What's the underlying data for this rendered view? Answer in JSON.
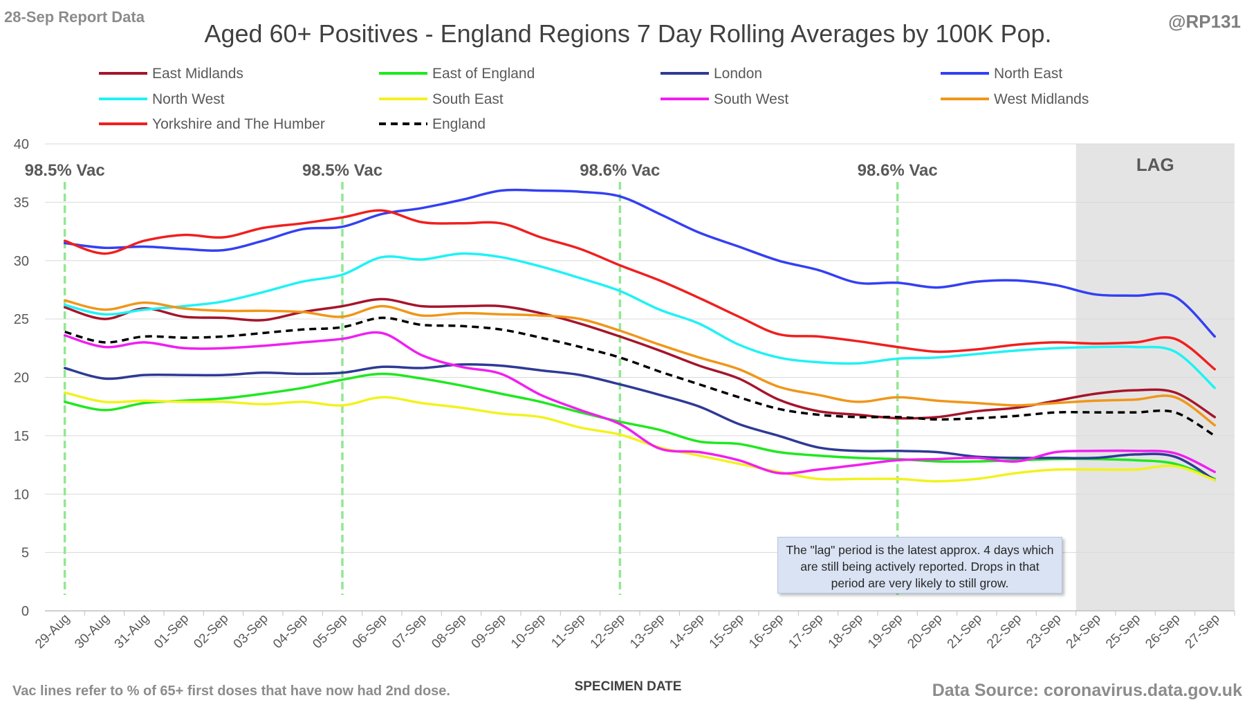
{
  "header": {
    "report_label": "28-Sep Report Data",
    "title": "Aged 60+ Positives - England Regions 7 Day Rolling Averages by 100K Pop.",
    "handle": "@RP131"
  },
  "footer": {
    "footnote": "Vac lines refer to % of 65+ first doses that have now had 2nd dose.",
    "source": "Data Source: coronavirus.data.gov.uk"
  },
  "note": "The \"lag\" period is the latest approx. 4 days which are still being actively reported. Drops in that period are very likely to still grow.",
  "chart_data": {
    "type": "line",
    "title": "Aged 60+ Positives - England Regions 7 Day Rolling Averages by 100K Pop.",
    "xlabel": "SPECIMEN DATE",
    "ylabel": "",
    "ylim": [
      0,
      40
    ],
    "yticks": [
      0,
      5,
      10,
      15,
      20,
      25,
      30,
      35,
      40
    ],
    "grid": "horizontal",
    "legend_position": "top",
    "x": [
      "29-Aug",
      "30-Aug",
      "31-Aug",
      "01-Sep",
      "02-Sep",
      "03-Sep",
      "04-Sep",
      "05-Sep",
      "06-Sep",
      "07-Sep",
      "08-Sep",
      "09-Sep",
      "10-Sep",
      "11-Sep",
      "12-Sep",
      "13-Sep",
      "14-Sep",
      "15-Sep",
      "16-Sep",
      "17-Sep",
      "18-Sep",
      "19-Sep",
      "20-Sep",
      "21-Sep",
      "22-Sep",
      "23-Sep",
      "24-Sep",
      "25-Sep",
      "26-Sep",
      "27-Sep"
    ],
    "lag": {
      "label": "LAG",
      "from": "24-Sep",
      "to": "27-Sep"
    },
    "vac_lines": [
      {
        "date": "29-Aug",
        "label": "98.5% Vac"
      },
      {
        "date": "05-Sep",
        "label": "98.5% Vac"
      },
      {
        "date": "12-Sep",
        "label": "98.6% Vac"
      },
      {
        "date": "19-Sep",
        "label": "98.6% Vac"
      }
    ],
    "series": [
      {
        "name": "East Midlands",
        "color": "#a5152b",
        "dashed": false,
        "values": [
          26.0,
          25.0,
          25.9,
          25.2,
          25.1,
          24.9,
          25.6,
          26.1,
          26.7,
          26.1,
          26.1,
          26.1,
          25.5,
          24.6,
          23.5,
          22.3,
          21.0,
          19.9,
          18.1,
          17.1,
          16.8,
          16.5,
          16.6,
          17.1,
          17.4,
          18.0,
          18.6,
          18.9,
          18.7,
          16.6
        ]
      },
      {
        "name": "East of England",
        "color": "#1fe81f",
        "dashed": false,
        "values": [
          17.9,
          17.2,
          17.8,
          18.0,
          18.2,
          18.6,
          19.1,
          19.8,
          20.3,
          19.9,
          19.3,
          18.6,
          17.9,
          17.0,
          16.2,
          15.5,
          14.5,
          14.3,
          13.6,
          13.3,
          13.1,
          13.0,
          12.8,
          12.8,
          12.9,
          13.0,
          13.0,
          12.9,
          12.6,
          11.3
        ]
      },
      {
        "name": "London",
        "color": "#2e3a94",
        "dashed": false,
        "values": [
          20.8,
          19.9,
          20.2,
          20.2,
          20.2,
          20.4,
          20.3,
          20.4,
          20.9,
          20.8,
          21.1,
          21.0,
          20.6,
          20.2,
          19.4,
          18.5,
          17.5,
          16.0,
          15.0,
          14.0,
          13.7,
          13.7,
          13.6,
          13.2,
          13.1,
          13.1,
          13.1,
          13.4,
          13.2,
          11.2
        ]
      },
      {
        "name": "North East",
        "color": "#3340f2",
        "dashed": false,
        "values": [
          31.5,
          31.1,
          31.2,
          31.0,
          30.9,
          31.7,
          32.7,
          32.9,
          34.0,
          34.5,
          35.2,
          36.0,
          36.0,
          35.9,
          35.5,
          34.0,
          32.4,
          31.2,
          30.0,
          29.2,
          28.1,
          28.1,
          27.7,
          28.2,
          28.3,
          27.9,
          27.1,
          27.0,
          26.9,
          23.5
        ]
      },
      {
        "name": "North West",
        "color": "#1ff2f5",
        "dashed": false,
        "values": [
          26.2,
          25.4,
          25.8,
          26.1,
          26.5,
          27.3,
          28.2,
          28.8,
          30.3,
          30.1,
          30.6,
          30.3,
          29.5,
          28.5,
          27.4,
          25.8,
          24.6,
          22.8,
          21.7,
          21.3,
          21.2,
          21.6,
          21.7,
          22.0,
          22.3,
          22.5,
          22.6,
          22.6,
          22.2,
          19.1
        ]
      },
      {
        "name": "South East",
        "color": "#f2f21f",
        "dashed": false,
        "values": [
          18.7,
          17.9,
          18.0,
          17.9,
          17.9,
          17.7,
          17.9,
          17.6,
          18.3,
          17.8,
          17.4,
          16.9,
          16.6,
          15.7,
          15.1,
          14.0,
          13.3,
          12.6,
          11.9,
          11.3,
          11.3,
          11.3,
          11.1,
          11.3,
          11.8,
          12.1,
          12.1,
          12.1,
          12.4,
          11.2
        ]
      },
      {
        "name": "South West",
        "color": "#f01ff0",
        "dashed": false,
        "values": [
          23.6,
          22.6,
          23.0,
          22.5,
          22.5,
          22.7,
          23.0,
          23.3,
          23.8,
          21.9,
          20.9,
          20.3,
          18.5,
          17.2,
          16.0,
          13.9,
          13.6,
          12.9,
          11.8,
          12.1,
          12.5,
          12.9,
          13.0,
          13.1,
          12.8,
          13.6,
          13.7,
          13.7,
          13.5,
          11.9
        ]
      },
      {
        "name": "West Midlands",
        "color": "#f0961a",
        "dashed": false,
        "values": [
          26.6,
          25.8,
          26.4,
          25.9,
          25.7,
          25.7,
          25.6,
          25.2,
          26.1,
          25.3,
          25.5,
          25.4,
          25.3,
          25.0,
          24.0,
          22.8,
          21.7,
          20.7,
          19.2,
          18.5,
          17.9,
          18.3,
          18.0,
          17.8,
          17.6,
          17.8,
          18.0,
          18.1,
          18.3,
          15.9
        ]
      },
      {
        "name": "Yorkshire and The Humber",
        "color": "#f01f1f",
        "dashed": false,
        "values": [
          31.7,
          30.6,
          31.7,
          32.2,
          32.0,
          32.8,
          33.2,
          33.7,
          34.3,
          33.3,
          33.2,
          33.2,
          32.0,
          31.0,
          29.6,
          28.3,
          26.8,
          25.2,
          23.7,
          23.5,
          23.1,
          22.6,
          22.2,
          22.4,
          22.8,
          23.0,
          22.9,
          23.0,
          23.3,
          20.7
        ]
      },
      {
        "name": "England",
        "color": "#000000",
        "dashed": true,
        "values": [
          23.9,
          23.0,
          23.5,
          23.4,
          23.5,
          23.8,
          24.1,
          24.3,
          25.1,
          24.5,
          24.4,
          24.1,
          23.4,
          22.6,
          21.7,
          20.5,
          19.4,
          18.3,
          17.3,
          16.8,
          16.6,
          16.6,
          16.4,
          16.5,
          16.7,
          17.0,
          17.0,
          17.0,
          17.0,
          15.0
        ]
      }
    ]
  }
}
